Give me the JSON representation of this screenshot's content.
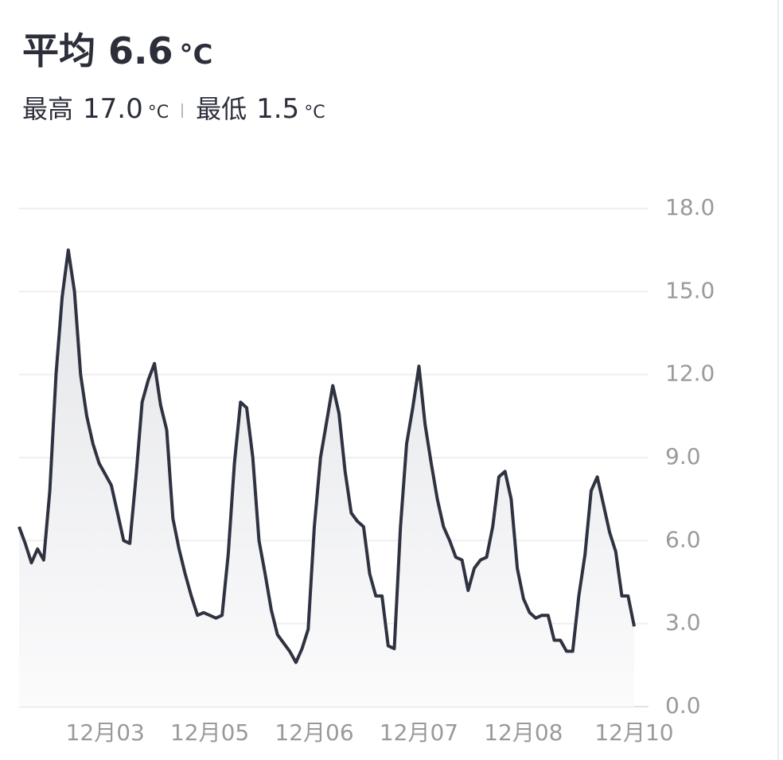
{
  "header": {
    "avg_label": "平均",
    "avg": "6.6",
    "unit": "°C",
    "max_label": "最高",
    "max": "17.0",
    "min_label": "最低",
    "min": "1.5"
  },
  "chart_data": {
    "type": "area",
    "categories": [
      null,
      null,
      null,
      null,
      null,
      null,
      null,
      null,
      null,
      null,
      null,
      null,
      null,
      null,
      "12月03",
      null,
      null,
      null,
      null,
      null,
      null,
      null,
      null,
      null,
      null,
      null,
      null,
      null,
      null,
      null,
      null,
      "12月05",
      null,
      null,
      null,
      null,
      null,
      null,
      null,
      null,
      null,
      null,
      null,
      null,
      null,
      null,
      null,
      null,
      "12月06",
      null,
      null,
      null,
      null,
      null,
      null,
      null,
      null,
      null,
      null,
      null,
      null,
      null,
      null,
      null,
      null,
      "12月07",
      null,
      null,
      null,
      null,
      null,
      null,
      null,
      null,
      null,
      null,
      null,
      null,
      null,
      null,
      null,
      null,
      "12月08",
      null,
      null,
      null,
      null,
      null,
      null,
      null,
      null,
      null,
      null,
      null,
      null,
      null,
      null,
      null,
      null,
      null,
      "12月10"
    ],
    "values": [
      6.5,
      5.9,
      5.2,
      5.7,
      5.3,
      7.8,
      12.0,
      14.8,
      16.5,
      15.0,
      12.0,
      10.5,
      9.5,
      8.8,
      8.4,
      8.0,
      7.0,
      6.0,
      5.9,
      8.3,
      11.0,
      11.8,
      12.4,
      10.9,
      10.0,
      6.8,
      5.7,
      4.8,
      4.0,
      3.3,
      3.4,
      3.3,
      3.2,
      3.3,
      5.5,
      8.8,
      11.0,
      10.8,
      9.0,
      6.0,
      4.8,
      3.5,
      2.6,
      2.3,
      2.0,
      1.6,
      2.1,
      2.8,
      6.5,
      9.0,
      10.3,
      11.6,
      10.6,
      8.5,
      7.0,
      6.7,
      6.5,
      4.8,
      4.0,
      4.0,
      2.2,
      2.1,
      6.5,
      9.5,
      10.8,
      12.3,
      10.2,
      8.8,
      7.5,
      6.5,
      6.0,
      5.4,
      5.3,
      4.2,
      5.0,
      5.3,
      5.4,
      6.5,
      8.3,
      8.5,
      7.5,
      5.0,
      3.9,
      3.4,
      3.2,
      3.3,
      3.3,
      2.4,
      2.4,
      2.0,
      2.0,
      4.0,
      5.5,
      7.8,
      8.3,
      7.3,
      6.3,
      5.6,
      4.0,
      4.0,
      2.9
    ],
    "color": "#2f3240",
    "ylim": [
      0,
      18
    ],
    "yticks": [
      {
        "value": 0,
        "label": "0.0"
      },
      {
        "value": 3,
        "label": "3.0"
      },
      {
        "value": 6,
        "label": "6.0"
      },
      {
        "value": 9,
        "label": "9.0"
      },
      {
        "value": 12,
        "label": "12.0"
      },
      {
        "value": 15,
        "label": "15.0"
      },
      {
        "value": 18,
        "label": "18.0"
      }
    ],
    "grid": true
  }
}
